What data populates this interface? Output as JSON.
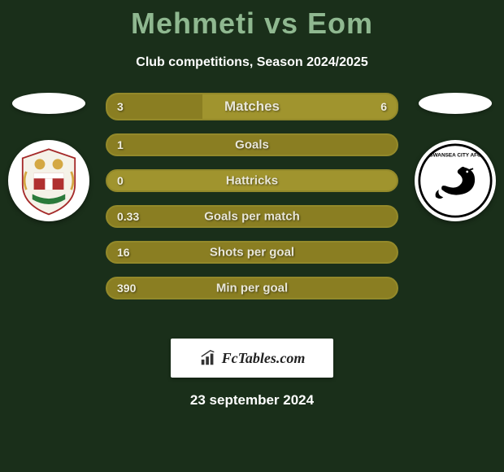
{
  "title": "Mehmeti vs Eom",
  "subtitle": "Club competitions, Season 2024/2025",
  "title_color": "#8fb890",
  "background_color": "#1a2f1a",
  "bar_base_color": "#a0942e",
  "bar_fill_color": "#8a7e22",
  "bar_border_color": "#93892a",
  "text_color": "#ffffff",
  "bars": [
    {
      "label": "Matches",
      "left": "3",
      "right": "6",
      "left_pct": 33,
      "right_pct": 0,
      "first": true,
      "show_right": true
    },
    {
      "label": "Goals",
      "left": "1",
      "right": "",
      "left_pct": 100,
      "right_pct": 0,
      "first": false,
      "show_right": false
    },
    {
      "label": "Hattricks",
      "left": "0",
      "right": "",
      "left_pct": 0,
      "right_pct": 0,
      "first": false,
      "show_right": false
    },
    {
      "label": "Goals per match",
      "left": "0.33",
      "right": "",
      "left_pct": 100,
      "right_pct": 0,
      "first": false,
      "show_right": false
    },
    {
      "label": "Shots per goal",
      "left": "16",
      "right": "",
      "left_pct": 100,
      "right_pct": 0,
      "first": false,
      "show_right": false
    },
    {
      "label": "Min per goal",
      "left": "390",
      "right": "",
      "left_pct": 100,
      "right_pct": 0,
      "first": false,
      "show_right": false
    }
  ],
  "footer_brand": "FcTables.com",
  "date": "23 september 2024",
  "left_badge": {
    "name": "bristol-city-crest",
    "bg": "#ffffff"
  },
  "right_badge": {
    "name": "swansea-city-crest",
    "bg": "#ffffff"
  }
}
